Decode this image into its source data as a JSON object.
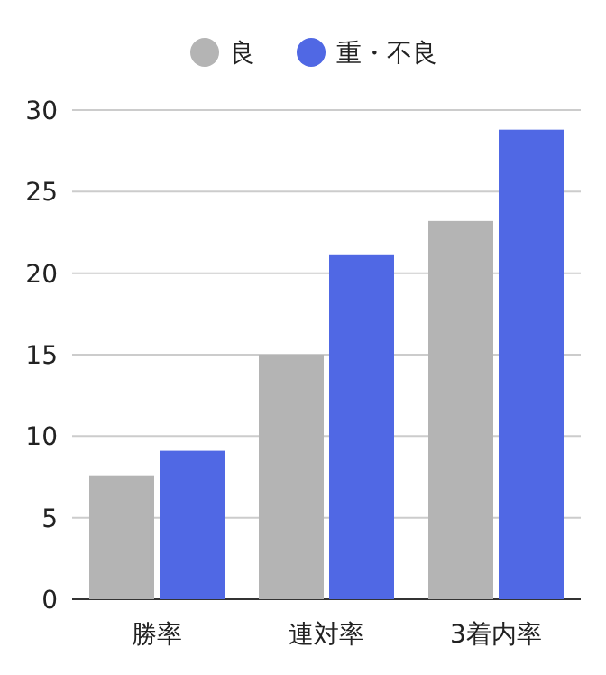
{
  "chart_data": {
    "type": "bar",
    "categories": [
      "勝率",
      "連対率",
      "3着内率"
    ],
    "series": [
      {
        "name": "良",
        "color": "#b4b4b4",
        "values": [
          7.6,
          15.0,
          23.2
        ]
      },
      {
        "name": "重・不良",
        "color": "#5068e4",
        "values": [
          9.1,
          21.1,
          28.8
        ]
      }
    ],
    "ylim": [
      0,
      30
    ],
    "yticks": [
      0,
      5,
      10,
      15,
      20,
      25,
      30
    ],
    "grid": "y",
    "legend": "top"
  }
}
